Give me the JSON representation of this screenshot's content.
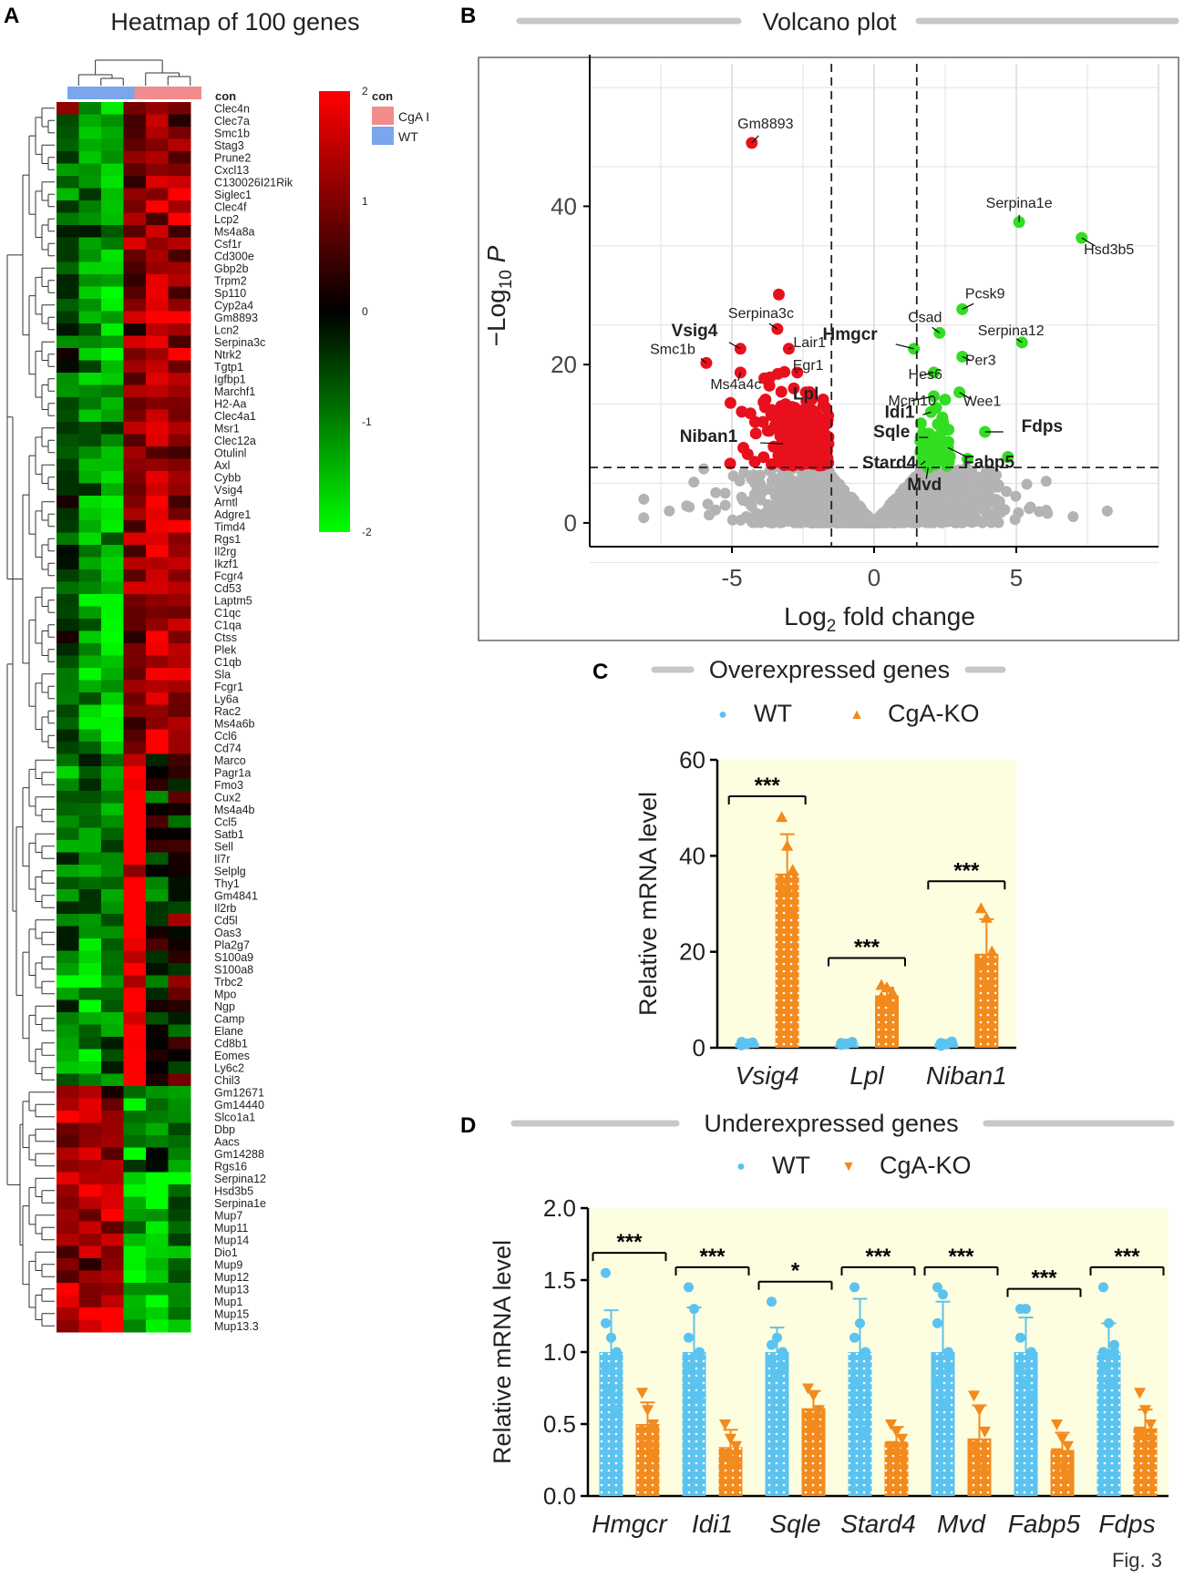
{
  "panel_labels": {
    "a": "A",
    "b": "B",
    "c": "C",
    "d": "D"
  },
  "footer": "Fig. 3",
  "chart_data": [
    {
      "panel": "A",
      "type": "heatmap",
      "title": "Heatmap of 100 genes",
      "annotation_label": "con",
      "legend_title": "con",
      "legend_groups": [
        {
          "name": "CgA KO",
          "color": "#f28b8b"
        },
        {
          "name": "WT",
          "color": "#7aa6ee"
        }
      ],
      "colorbar_ticks": [
        "2",
        "1",
        "0",
        "-1",
        "-2"
      ],
      "colorbar_range": [
        -2,
        2
      ],
      "colors": {
        "high": "#ff0000",
        "mid": "#000000",
        "low": "#00ff00"
      },
      "column_groups": [
        "WT",
        "WT",
        "WT",
        "CgA KO",
        "CgA KO",
        "CgA KO"
      ],
      "genes": [
        "Clec4n",
        "Clec7a",
        "Smc1b",
        "Stag3",
        "Prune2",
        "Cxcl13",
        "C130026I21Rik",
        "Siglec1",
        "Clec4f",
        "Lcp2",
        "Ms4a8a",
        "Csf1r",
        "Cd300e",
        "Gbp2b",
        "Trpm2",
        "Sp110",
        "Cyp2a4",
        "Gm8893",
        "Lcn2",
        "Serpina3c",
        "Ntrk2",
        "Tgtp1",
        "Igfbp1",
        "Marchf1",
        "H2-Aa",
        "Clec4a1",
        "Msr1",
        "Clec12a",
        "Otulinl",
        "Axl",
        "Cybb",
        "Vsig4",
        "Arntl",
        "Adgre1",
        "Timd4",
        "Rgs1",
        "Il2rg",
        "Ikzf1",
        "Fcgr4",
        "Cd53",
        "Laptm5",
        "C1qc",
        "C1qa",
        "Ctss",
        "Plek",
        "C1qb",
        "Sla",
        "Fcgr1",
        "Ly6a",
        "Rac2",
        "Ms4a6b",
        "Ccl6",
        "Cd74",
        "Marco",
        "Pagr1a",
        "Fmo3",
        "Cux2",
        "Ms4a4b",
        "Ccl5",
        "Satb1",
        "Sell",
        "Il7r",
        "Selplg",
        "Thy1",
        "Gm4841",
        "Il2rb",
        "Cd5l",
        "Oas3",
        "Pla2g7",
        "S100a9",
        "S100a8",
        "Trbc2",
        "Mpo",
        "Ngp",
        "Camp",
        "Elane",
        "Cd8b1",
        "Eomes",
        "Ly6c2",
        "Chil3",
        "Gm12671",
        "Gm14440",
        "Slco1a1",
        "Dbp",
        "Aacs",
        "Gm14288",
        "Rgs16",
        "Serpina12",
        "Hsd3b5",
        "Serpina1e",
        "Mup7",
        "Mup11",
        "Mup14",
        "Dio1",
        "Mup9",
        "Mup12",
        "Mup13",
        "Mup1",
        "Mup15",
        "Mup13.3"
      ]
    },
    {
      "panel": "B",
      "type": "scatter",
      "title": "Volcano plot",
      "xlabel": "Log",
      "xlabel_sub": "2",
      "xlabel_rest": " fold change",
      "ylabel": "−Log",
      "ylabel_sub": "10",
      "ylabel_rest": " P",
      "xlim": [
        -10,
        10
      ],
      "ylim": [
        -3,
        58
      ],
      "xticks": [
        -5,
        0,
        5
      ],
      "yticks": [
        0,
        20,
        40
      ],
      "threshold_fc": [
        -1.5,
        1.5
      ],
      "threshold_p": 7,
      "colors": {
        "ns": "#b3b3b3",
        "down": "#e8101c",
        "up": "#33dd22"
      },
      "labels": [
        {
          "text": "Gm8893",
          "x": -4.3,
          "y": 48,
          "bold": false
        },
        {
          "text": "Serpina1e",
          "x": 5.1,
          "y": 38,
          "bold": false
        },
        {
          "text": "Hsd3b5",
          "x": 7.3,
          "y": 36,
          "bold": false
        },
        {
          "text": "Pcsk9",
          "x": 3.1,
          "y": 27,
          "bold": false
        },
        {
          "text": "Serpina3c",
          "x": -3.4,
          "y": 24.5,
          "bold": false
        },
        {
          "text": "Csad",
          "x": 2.3,
          "y": 24,
          "bold": false
        },
        {
          "text": "Serpina12",
          "x": 5.2,
          "y": 22.8,
          "bold": false
        },
        {
          "text": "Vsig4",
          "x": -4.7,
          "y": 22,
          "bold": true
        },
        {
          "text": "Lair1",
          "x": -3.0,
          "y": 22,
          "bold": false
        },
        {
          "text": "Hmgcr",
          "x": 1.4,
          "y": 22,
          "bold": true
        },
        {
          "text": "Smc1b",
          "x": -5.9,
          "y": 20.2,
          "bold": false
        },
        {
          "text": "Egr1",
          "x": -2.7,
          "y": 19,
          "bold": false
        },
        {
          "text": "Hes6",
          "x": 2.1,
          "y": 19,
          "bold": false
        },
        {
          "text": "Per3",
          "x": 3.1,
          "y": 21,
          "bold": false
        },
        {
          "text": "Ms4a4c",
          "x": -4.7,
          "y": 19,
          "bold": false
        },
        {
          "text": "Lpl",
          "x": -2.4,
          "y": 16.5,
          "bold": true
        },
        {
          "text": "Mcm10",
          "x": 2.1,
          "y": 16,
          "bold": false
        },
        {
          "text": "Wee1",
          "x": 3.0,
          "y": 16.5,
          "bold": false
        },
        {
          "text": "Idi1",
          "x": 2.0,
          "y": 14,
          "bold": true
        },
        {
          "text": "Niban1",
          "x": -3.2,
          "y": 10,
          "bold": true
        },
        {
          "text": "Sqle",
          "x": 1.9,
          "y": 10.8,
          "bold": true
        },
        {
          "text": "Fdps",
          "x": 3.9,
          "y": 11.5,
          "bold": true
        },
        {
          "text": "Stard4",
          "x": 1.8,
          "y": 7.8,
          "bold": true
        },
        {
          "text": "Mvd",
          "x": 1.9,
          "y": 7.0,
          "bold": true
        },
        {
          "text": "Fabp5",
          "x": 2.6,
          "y": 9.5,
          "bold": true
        }
      ]
    },
    {
      "panel": "C",
      "type": "bar",
      "title": "Overexpressed genes",
      "ylabel": "Relative mRNA level",
      "ylim": [
        0,
        60
      ],
      "yticks": [
        "0",
        "20",
        "40",
        "60"
      ],
      "categories": [
        "Vsig4",
        "Lpl",
        "Niban1"
      ],
      "legend": [
        {
          "name": "WT",
          "marker": "●",
          "color": "#5bc3ef"
        },
        {
          "name": "CgA-KO",
          "marker": "▲",
          "color": "#f28a1d"
        }
      ],
      "background": "#fdfde0",
      "significance": [
        "***",
        "***",
        "***"
      ],
      "series": [
        {
          "name": "WT",
          "values": [
            1.0,
            1.0,
            1.0
          ],
          "sd": [
            0.3,
            0.3,
            0.4
          ],
          "points": [
            [
              0.5,
              0.8,
              1.0,
              1.2,
              0.9,
              1.1
            ],
            [
              0.6,
              0.9,
              1.1,
              1.0,
              0.8,
              1.2
            ],
            [
              0.4,
              0.8,
              1.3,
              1.0,
              0.7,
              1.1
            ]
          ]
        },
        {
          "name": "CgA-KO",
          "values": [
            36.3,
            10.9,
            19.6
          ],
          "sd": [
            8.2,
            1.6,
            7.2
          ],
          "points": [
            [
              48,
              42,
              37,
              35,
              33,
              28
            ],
            [
              13,
              12.5,
              11.5,
              10.5,
              9.5,
              8
            ],
            [
              29,
              27,
              20,
              17,
              13,
              11
            ]
          ]
        }
      ]
    },
    {
      "panel": "D",
      "type": "bar",
      "title": "Underexpressed genes",
      "ylabel": "Relative mRNA level",
      "ylim": [
        0,
        2.0
      ],
      "yticks": [
        "0.0",
        "0.5",
        "1.0",
        "1.5",
        "2.0"
      ],
      "categories": [
        "Hmgcr",
        "Idi1",
        "Sqle",
        "Stard4",
        "Mvd",
        "Fabp5",
        "Fdps"
      ],
      "legend": [
        {
          "name": "WT",
          "marker": "●",
          "color": "#5bc3ef"
        },
        {
          "name": "CgA-KO",
          "marker": "▼",
          "color": "#f28a1d"
        }
      ],
      "background": "#fdfde0",
      "significance": [
        "***",
        "***",
        "*",
        "***",
        "***",
        "***",
        "***"
      ],
      "series": [
        {
          "name": "WT",
          "values": [
            1.0,
            1.0,
            1.0,
            1.0,
            1.0,
            1.0,
            1.0
          ],
          "sd": [
            0.29,
            0.31,
            0.17,
            0.37,
            0.35,
            0.24,
            0.2
          ],
          "points": [
            [
              1.55,
              1.1,
              1.0,
              0.9,
              0.75,
              0.6,
              1.2
            ],
            [
              1.45,
              1.3,
              1.0,
              0.9,
              0.8,
              0.7,
              1.1
            ],
            [
              1.35,
              1.1,
              1.0,
              0.95,
              0.85,
              0.9,
              1.05
            ],
            [
              1.45,
              1.2,
              1.0,
              0.8,
              0.6,
              0.45,
              1.1
            ],
            [
              1.45,
              1.4,
              1.0,
              0.8,
              0.65,
              0.9,
              1.2
            ],
            [
              1.3,
              1.3,
              1.0,
              0.9,
              0.8,
              0.7,
              1.1
            ],
            [
              1.45,
              1.2,
              1.0,
              0.9,
              0.8,
              1.05,
              1.0
            ]
          ]
        },
        {
          "name": "CgA-KO",
          "values": [
            0.5,
            0.34,
            0.61,
            0.38,
            0.4,
            0.32,
            0.47
          ],
          "sd": [
            0.15,
            0.12,
            0.12,
            0.1,
            0.23,
            0.12,
            0.13
          ],
          "points": [
            [
              0.72,
              0.6,
              0.5,
              0.45,
              0.35,
              0.3
            ],
            [
              0.5,
              0.4,
              0.35,
              0.3,
              0.25,
              0.2
            ],
            [
              0.75,
              0.7,
              0.6,
              0.55,
              0.5,
              0.45
            ],
            [
              0.5,
              0.45,
              0.4,
              0.35,
              0.3,
              0.25
            ],
            [
              0.7,
              0.6,
              0.45,
              0.35,
              0.25,
              0.15
            ],
            [
              0.5,
              0.4,
              0.35,
              0.3,
              0.2,
              0.15
            ],
            [
              0.72,
              0.6,
              0.5,
              0.45,
              0.4,
              0.35
            ]
          ]
        }
      ]
    }
  ]
}
